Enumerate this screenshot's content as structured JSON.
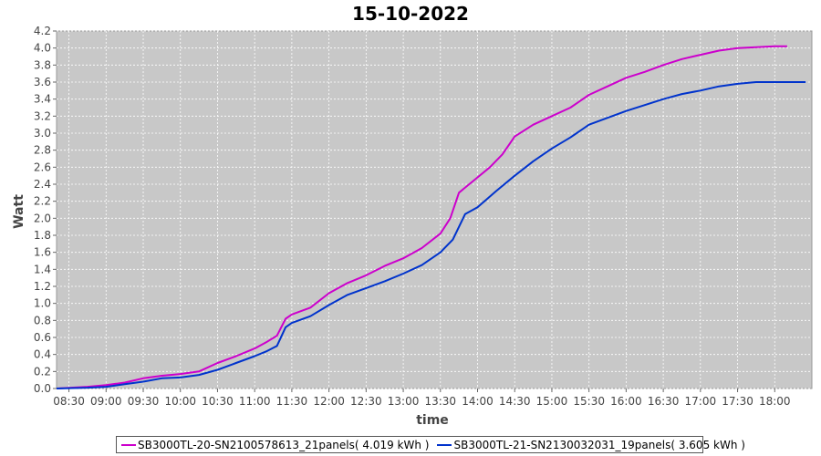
{
  "chart_data": {
    "type": "line",
    "title": "15-10-2022",
    "xlabel": "time",
    "ylabel": "Watt",
    "ylim": [
      0,
      4.2
    ],
    "y_ticks": [
      "0.0",
      "0.2",
      "0.4",
      "0.6",
      "0.8",
      "1.0",
      "1.2",
      "1.4",
      "1.6",
      "1.8",
      "2.0",
      "2.2",
      "2.4",
      "2.6",
      "2.8",
      "3.0",
      "3.2",
      "3.4",
      "3.6",
      "3.8",
      "4.0",
      "4.2"
    ],
    "x_ticks": [
      "08:30",
      "09:00",
      "09:30",
      "10:00",
      "10:30",
      "11:00",
      "11:30",
      "12:00",
      "12:30",
      "13:00",
      "13:30",
      "14:00",
      "14:30",
      "15:00",
      "15:30",
      "16:00",
      "16:30",
      "17:00",
      "17:30",
      "18:00"
    ],
    "xlim": [
      "08:20",
      "18:30"
    ],
    "grid": true,
    "legend_position": "bottom",
    "series": [
      {
        "name": "SB3000TL-20-SN2100578613_21panels( 4.019 kWh )",
        "color": "#cc00cc",
        "points": [
          [
            "08:20",
            0.0
          ],
          [
            "08:45",
            0.02
          ],
          [
            "09:00",
            0.04
          ],
          [
            "09:15",
            0.07
          ],
          [
            "09:30",
            0.12
          ],
          [
            "09:45",
            0.15
          ],
          [
            "10:00",
            0.17
          ],
          [
            "10:15",
            0.2
          ],
          [
            "10:30",
            0.3
          ],
          [
            "10:45",
            0.38
          ],
          [
            "11:00",
            0.47
          ],
          [
            "11:10",
            0.55
          ],
          [
            "11:18",
            0.62
          ],
          [
            "11:25",
            0.82
          ],
          [
            "11:30",
            0.87
          ],
          [
            "11:45",
            0.95
          ],
          [
            "12:00",
            1.12
          ],
          [
            "12:15",
            1.24
          ],
          [
            "12:30",
            1.33
          ],
          [
            "12:45",
            1.44
          ],
          [
            "13:00",
            1.53
          ],
          [
            "13:15",
            1.65
          ],
          [
            "13:30",
            1.82
          ],
          [
            "13:38",
            2.0
          ],
          [
            "13:45",
            2.3
          ],
          [
            "14:00",
            2.48
          ],
          [
            "14:10",
            2.6
          ],
          [
            "14:20",
            2.75
          ],
          [
            "14:30",
            2.96
          ],
          [
            "14:45",
            3.1
          ],
          [
            "15:00",
            3.2
          ],
          [
            "15:15",
            3.3
          ],
          [
            "15:30",
            3.45
          ],
          [
            "15:45",
            3.55
          ],
          [
            "16:00",
            3.65
          ],
          [
            "16:15",
            3.72
          ],
          [
            "16:30",
            3.8
          ],
          [
            "16:45",
            3.87
          ],
          [
            "17:00",
            3.92
          ],
          [
            "17:15",
            3.97
          ],
          [
            "17:30",
            4.0
          ],
          [
            "17:45",
            4.01
          ],
          [
            "18:00",
            4.02
          ],
          [
            "18:10",
            4.02
          ]
        ]
      },
      {
        "name": "SB3000TL-21-SN2130032031_19panels( 3.605 kWh )",
        "color": "#0033cc",
        "points": [
          [
            "08:20",
            0.0
          ],
          [
            "08:45",
            0.01
          ],
          [
            "09:00",
            0.02
          ],
          [
            "09:15",
            0.05
          ],
          [
            "09:30",
            0.08
          ],
          [
            "09:45",
            0.12
          ],
          [
            "10:00",
            0.13
          ],
          [
            "10:15",
            0.16
          ],
          [
            "10:30",
            0.22
          ],
          [
            "10:45",
            0.3
          ],
          [
            "11:00",
            0.38
          ],
          [
            "11:10",
            0.44
          ],
          [
            "11:18",
            0.5
          ],
          [
            "11:25",
            0.72
          ],
          [
            "11:30",
            0.77
          ],
          [
            "11:45",
            0.85
          ],
          [
            "12:00",
            0.98
          ],
          [
            "12:15",
            1.1
          ],
          [
            "12:30",
            1.18
          ],
          [
            "12:45",
            1.26
          ],
          [
            "13:00",
            1.35
          ],
          [
            "13:15",
            1.45
          ],
          [
            "13:30",
            1.6
          ],
          [
            "13:40",
            1.75
          ],
          [
            "13:50",
            2.05
          ],
          [
            "14:00",
            2.13
          ],
          [
            "14:15",
            2.32
          ],
          [
            "14:30",
            2.5
          ],
          [
            "14:45",
            2.67
          ],
          [
            "15:00",
            2.82
          ],
          [
            "15:15",
            2.95
          ],
          [
            "15:30",
            3.1
          ],
          [
            "15:45",
            3.18
          ],
          [
            "16:00",
            3.26
          ],
          [
            "16:15",
            3.33
          ],
          [
            "16:30",
            3.4
          ],
          [
            "16:45",
            3.46
          ],
          [
            "17:00",
            3.5
          ],
          [
            "17:15",
            3.55
          ],
          [
            "17:30",
            3.58
          ],
          [
            "17:45",
            3.6
          ],
          [
            "18:00",
            3.6
          ],
          [
            "18:25",
            3.6
          ]
        ]
      }
    ]
  }
}
